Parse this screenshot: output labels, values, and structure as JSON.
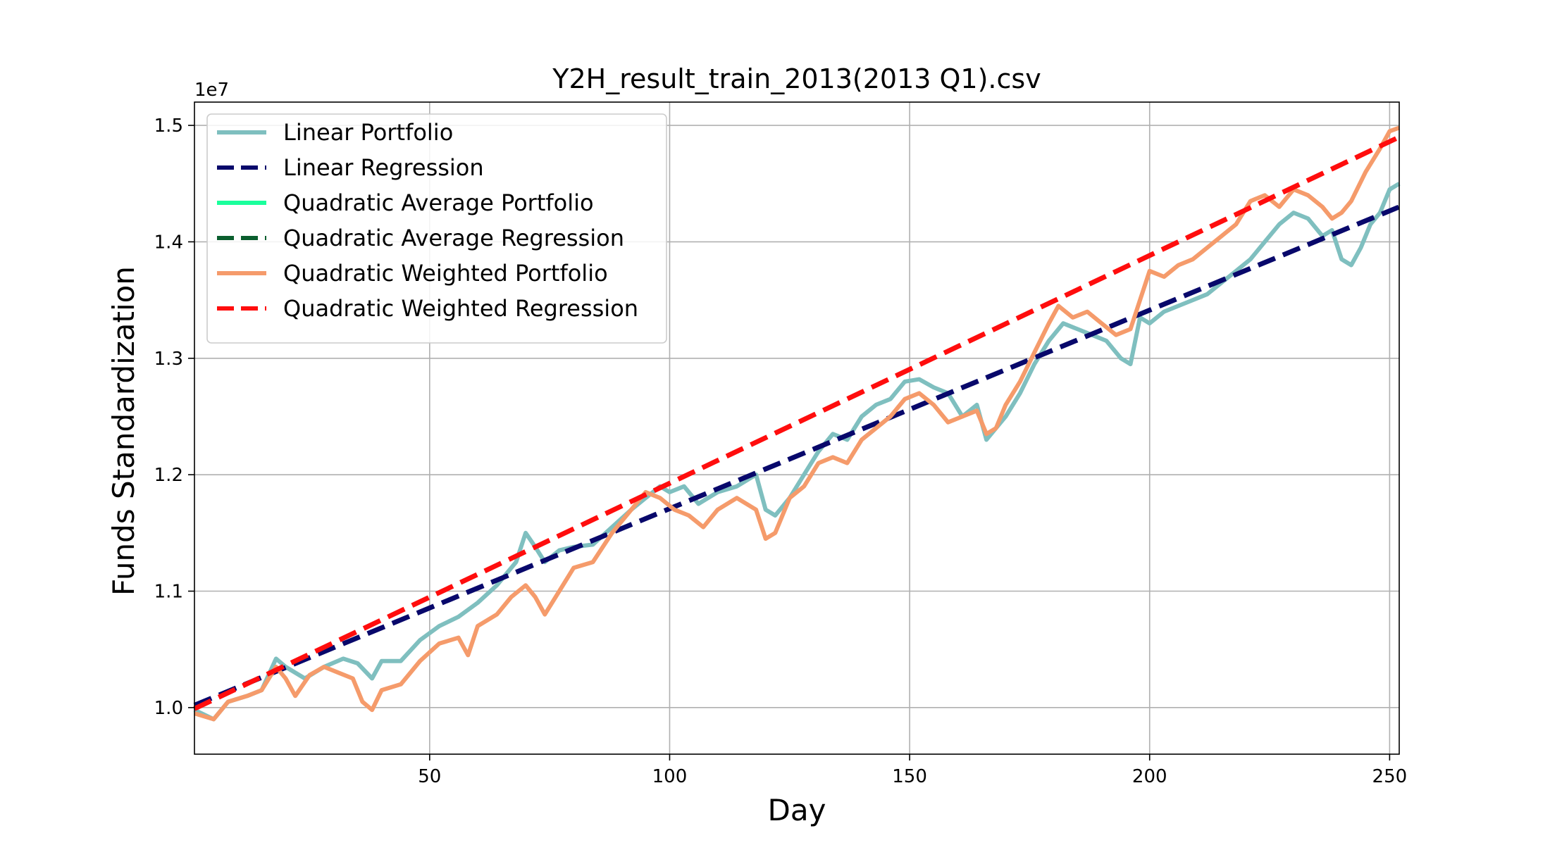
{
  "chart_data": {
    "type": "line",
    "title": "Y2H_result_train_2013(2013 Q1).csv",
    "xlabel": "Day",
    "ylabel": "Funds Standardization",
    "y_offset_label": "1e7",
    "xlim": [
      1,
      252
    ],
    "ylim": [
      9600000,
      15200000
    ],
    "x_ticks": [
      50,
      100,
      150,
      200,
      250
    ],
    "y_ticks": [
      10000000,
      11000000,
      12000000,
      13000000,
      14000000,
      15000000
    ],
    "y_tick_labels": [
      "1.0",
      "1.1",
      "1.2",
      "1.3",
      "1.4",
      "1.5"
    ],
    "grid": true,
    "legend_position": "upper-left",
    "series": [
      {
        "name": "Linear Portfolio",
        "color": "#7fbfbf",
        "style": "solid",
        "points": [
          [
            1,
            9980000
          ],
          [
            5,
            9900000
          ],
          [
            8,
            10050000
          ],
          [
            12,
            10100000
          ],
          [
            15,
            10150000
          ],
          [
            18,
            10420000
          ],
          [
            20,
            10350000
          ],
          [
            24,
            10250000
          ],
          [
            28,
            10350000
          ],
          [
            32,
            10420000
          ],
          [
            35,
            10380000
          ],
          [
            38,
            10250000
          ],
          [
            40,
            10400000
          ],
          [
            44,
            10400000
          ],
          [
            48,
            10580000
          ],
          [
            52,
            10700000
          ],
          [
            56,
            10780000
          ],
          [
            60,
            10900000
          ],
          [
            64,
            11050000
          ],
          [
            66,
            11150000
          ],
          [
            68,
            11250000
          ],
          [
            70,
            11500000
          ],
          [
            72,
            11380000
          ],
          [
            74,
            11250000
          ],
          [
            77,
            11350000
          ],
          [
            80,
            11380000
          ],
          [
            84,
            11400000
          ],
          [
            88,
            11550000
          ],
          [
            92,
            11700000
          ],
          [
            95,
            11800000
          ],
          [
            98,
            11900000
          ],
          [
            100,
            11850000
          ],
          [
            103,
            11900000
          ],
          [
            106,
            11750000
          ],
          [
            110,
            11850000
          ],
          [
            114,
            11900000
          ],
          [
            118,
            12000000
          ],
          [
            120,
            11700000
          ],
          [
            122,
            11650000
          ],
          [
            125,
            11800000
          ],
          [
            128,
            12000000
          ],
          [
            131,
            12200000
          ],
          [
            134,
            12350000
          ],
          [
            137,
            12300000
          ],
          [
            140,
            12500000
          ],
          [
            143,
            12600000
          ],
          [
            146,
            12650000
          ],
          [
            149,
            12800000
          ],
          [
            152,
            12820000
          ],
          [
            155,
            12750000
          ],
          [
            158,
            12700000
          ],
          [
            161,
            12500000
          ],
          [
            164,
            12600000
          ],
          [
            166,
            12300000
          ],
          [
            168,
            12400000
          ],
          [
            170,
            12500000
          ],
          [
            173,
            12700000
          ],
          [
            176,
            12950000
          ],
          [
            179,
            13150000
          ],
          [
            182,
            13300000
          ],
          [
            185,
            13250000
          ],
          [
            188,
            13200000
          ],
          [
            191,
            13150000
          ],
          [
            194,
            13000000
          ],
          [
            196,
            12950000
          ],
          [
            198,
            13350000
          ],
          [
            200,
            13300000
          ],
          [
            203,
            13400000
          ],
          [
            206,
            13450000
          ],
          [
            209,
            13500000
          ],
          [
            212,
            13550000
          ],
          [
            215,
            13650000
          ],
          [
            218,
            13750000
          ],
          [
            221,
            13850000
          ],
          [
            224,
            14000000
          ],
          [
            227,
            14150000
          ],
          [
            230,
            14250000
          ],
          [
            233,
            14200000
          ],
          [
            236,
            14050000
          ],
          [
            238,
            14100000
          ],
          [
            240,
            13850000
          ],
          [
            242,
            13800000
          ],
          [
            244,
            13950000
          ],
          [
            246,
            14150000
          ],
          [
            248,
            14250000
          ],
          [
            250,
            14450000
          ],
          [
            252,
            14500000
          ]
        ]
      },
      {
        "name": "Linear Regression",
        "color": "#08086b",
        "style": "dashed",
        "points": [
          [
            1,
            10020000
          ],
          [
            252,
            14300000
          ]
        ]
      },
      {
        "name": "Quadratic Average Portfolio",
        "color": "#1aff9c",
        "style": "solid",
        "points": []
      },
      {
        "name": "Quadratic Average Regression",
        "color": "#0b5e2e",
        "style": "dashed",
        "points": []
      },
      {
        "name": "Quadratic Weighted Portfolio",
        "color": "#f59b6b",
        "style": "solid",
        "points": [
          [
            1,
            9950000
          ],
          [
            5,
            9900000
          ],
          [
            8,
            10050000
          ],
          [
            12,
            10100000
          ],
          [
            15,
            10150000
          ],
          [
            18,
            10350000
          ],
          [
            20,
            10250000
          ],
          [
            22,
            10100000
          ],
          [
            25,
            10280000
          ],
          [
            28,
            10350000
          ],
          [
            31,
            10300000
          ],
          [
            34,
            10250000
          ],
          [
            36,
            10050000
          ],
          [
            38,
            9980000
          ],
          [
            40,
            10150000
          ],
          [
            44,
            10200000
          ],
          [
            48,
            10400000
          ],
          [
            52,
            10550000
          ],
          [
            56,
            10600000
          ],
          [
            58,
            10450000
          ],
          [
            60,
            10700000
          ],
          [
            64,
            10800000
          ],
          [
            67,
            10950000
          ],
          [
            70,
            11050000
          ],
          [
            72,
            10950000
          ],
          [
            74,
            10800000
          ],
          [
            77,
            11000000
          ],
          [
            80,
            11200000
          ],
          [
            84,
            11250000
          ],
          [
            88,
            11500000
          ],
          [
            92,
            11700000
          ],
          [
            95,
            11850000
          ],
          [
            98,
            11800000
          ],
          [
            101,
            11700000
          ],
          [
            104,
            11650000
          ],
          [
            107,
            11550000
          ],
          [
            110,
            11700000
          ],
          [
            114,
            11800000
          ],
          [
            118,
            11700000
          ],
          [
            120,
            11450000
          ],
          [
            122,
            11500000
          ],
          [
            125,
            11800000
          ],
          [
            128,
            11900000
          ],
          [
            131,
            12100000
          ],
          [
            134,
            12150000
          ],
          [
            137,
            12100000
          ],
          [
            140,
            12300000
          ],
          [
            143,
            12400000
          ],
          [
            146,
            12500000
          ],
          [
            149,
            12650000
          ],
          [
            152,
            12700000
          ],
          [
            155,
            12600000
          ],
          [
            158,
            12450000
          ],
          [
            161,
            12500000
          ],
          [
            164,
            12550000
          ],
          [
            166,
            12350000
          ],
          [
            168,
            12400000
          ],
          [
            170,
            12600000
          ],
          [
            173,
            12800000
          ],
          [
            176,
            13050000
          ],
          [
            179,
            13300000
          ],
          [
            181,
            13450000
          ],
          [
            184,
            13350000
          ],
          [
            187,
            13400000
          ],
          [
            190,
            13300000
          ],
          [
            193,
            13200000
          ],
          [
            196,
            13250000
          ],
          [
            198,
            13500000
          ],
          [
            200,
            13750000
          ],
          [
            203,
            13700000
          ],
          [
            206,
            13800000
          ],
          [
            209,
            13850000
          ],
          [
            212,
            13950000
          ],
          [
            215,
            14050000
          ],
          [
            218,
            14150000
          ],
          [
            221,
            14350000
          ],
          [
            224,
            14400000
          ],
          [
            227,
            14300000
          ],
          [
            230,
            14450000
          ],
          [
            233,
            14400000
          ],
          [
            236,
            14300000
          ],
          [
            238,
            14200000
          ],
          [
            240,
            14250000
          ],
          [
            242,
            14350000
          ],
          [
            245,
            14600000
          ],
          [
            248,
            14800000
          ],
          [
            250,
            14950000
          ],
          [
            252,
            14980000
          ]
        ]
      },
      {
        "name": "Quadratic Weighted Regression",
        "color": "#ff0d0d",
        "style": "dashed",
        "points": [
          [
            1,
            9990000
          ],
          [
            252,
            14900000
          ]
        ]
      }
    ]
  }
}
